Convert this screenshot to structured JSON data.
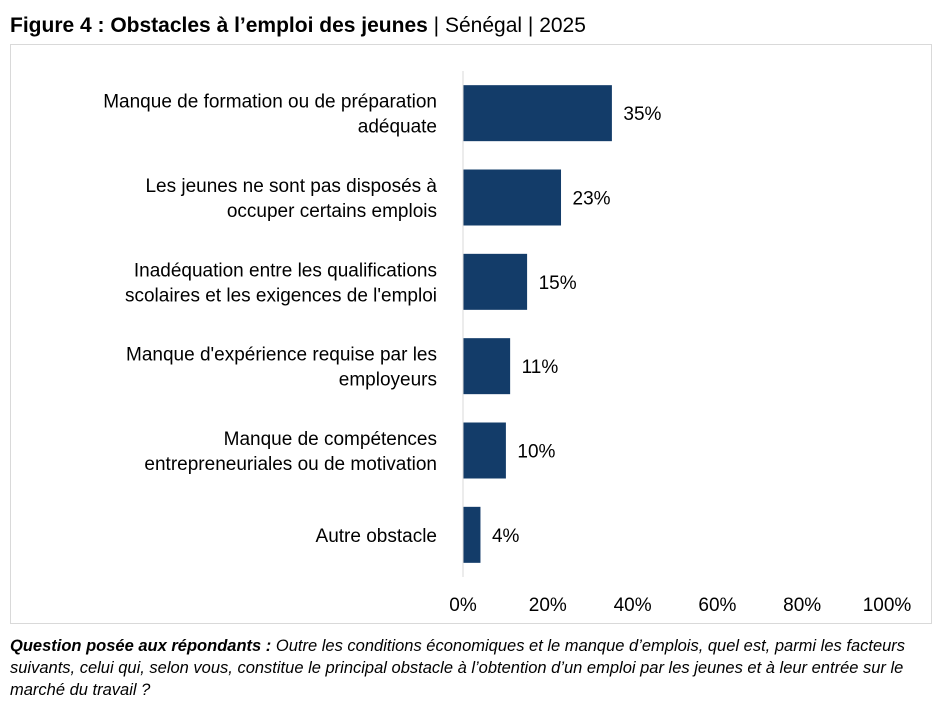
{
  "title": {
    "figure": "Figure 4 : Obstacles à l’emploi des jeunes",
    "sep1": "|",
    "country": "Sénégal",
    "sep2": "|",
    "year": "2025"
  },
  "footnote": {
    "question_label": "Question posée aux répondants :",
    "question_text": "Outre les conditions économiques et le manque d’emplois, quel est, parmi les facteurs suivants, celui qui, selon vous, constitue le principal obstacle à l’obtention d’un emploi par les jeunes et à leur entrée sur le marché du travail ?"
  },
  "chart_data": {
    "type": "bar",
    "orientation": "horizontal",
    "categories": [
      [
        "Manque de formation ou de préparation",
        "adéquate"
      ],
      [
        "Les jeunes ne sont pas disposés à",
        "occuper certains emplois"
      ],
      [
        "Inadéquation entre les qualifications",
        "scolaires et les exigences de l'emploi"
      ],
      [
        "Manque d'expérience requise par les",
        "employeurs"
      ],
      [
        "Manque de compétences",
        "entrepreneuriales ou de motivation"
      ],
      [
        "Autre obstacle"
      ]
    ],
    "values": [
      35,
      23,
      15,
      11,
      10,
      4
    ],
    "data_labels": [
      "35%",
      "23%",
      "15%",
      "11%",
      "10%",
      "4%"
    ],
    "xlim": [
      0,
      100
    ],
    "x_ticks": [
      0,
      20,
      40,
      60,
      80,
      100
    ],
    "x_tick_labels": [
      "0%",
      "20%",
      "40%",
      "60%",
      "80%",
      "100%"
    ],
    "grid": false,
    "bar_color": "#133c69",
    "axis_color": "#d9d9d9"
  }
}
